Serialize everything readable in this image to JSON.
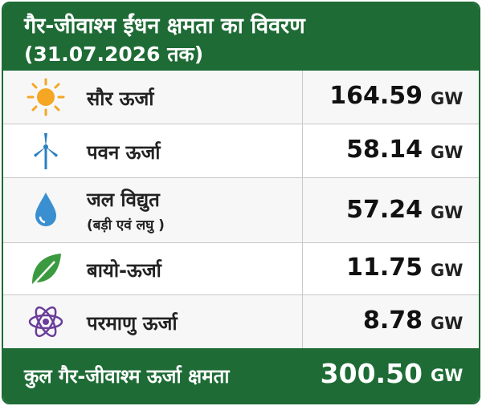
{
  "header": {
    "title": "गैर-जीवाश्म ईंधन क्षमता का विवरण",
    "subtitle": "(31.07.2026 तक)"
  },
  "table": {
    "rows": [
      {
        "label": "सौर ऊर्जा",
        "value": "164.59",
        "unit": "GW"
      },
      {
        "label": "पवन ऊर्जा",
        "value": "58.14",
        "unit": "GW"
      },
      {
        "label": "जल विद्युत",
        "sublabel": "(बड़ी एवं लघु )",
        "value": "57.24",
        "unit": "GW"
      },
      {
        "label": "बायो-ऊर्जा",
        "value": "11.75",
        "unit": "GW"
      },
      {
        "label": "परमाणु ऊर्जा",
        "value": "8.78",
        "unit": "GW"
      }
    ]
  },
  "footer": {
    "label": "कुल गैर-जीवाश्म ऊर्जा क्षमता",
    "value": "300.50",
    "unit": "GW"
  }
}
